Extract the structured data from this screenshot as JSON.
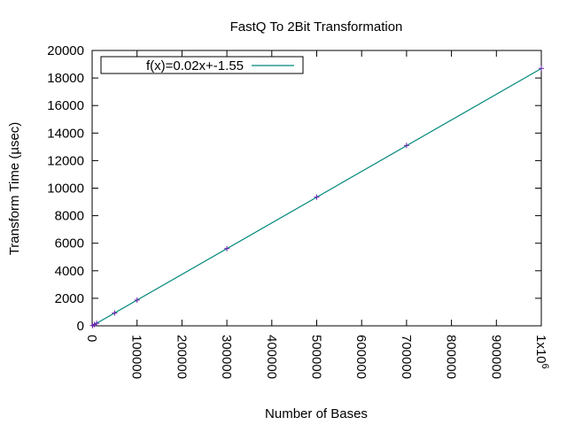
{
  "chart_data": {
    "type": "line",
    "title": "FastQ To 2Bit Transformation",
    "xlabel": "Number of Bases",
    "ylabel": "Transform Time (µsec)",
    "xlim": [
      0,
      1000000
    ],
    "ylim": [
      0,
      20000
    ],
    "x_ticks": [
      0,
      100000,
      200000,
      300000,
      400000,
      500000,
      600000,
      700000,
      800000,
      900000,
      1000000
    ],
    "x_tick_labels": [
      "0",
      "100000",
      "200000",
      "300000",
      "400000",
      "500000",
      "600000",
      "700000",
      "800000",
      "900000",
      "1x10"
    ],
    "x_last_tick_exponent": "6",
    "y_ticks": [
      0,
      2000,
      4000,
      6000,
      8000,
      10000,
      12000,
      14000,
      16000,
      18000,
      20000
    ],
    "y_tick_labels": [
      "0",
      "2000",
      "4000",
      "6000",
      "8000",
      "10000",
      "12000",
      "14000",
      "16000",
      "18000",
      "20000"
    ],
    "grid": false,
    "legend_position": "top-left",
    "series": [
      {
        "kind": "points",
        "marker": "+",
        "color": "#6a1fb0",
        "x": [
          1000,
          5000,
          10000,
          50000,
          100000,
          300000,
          500000,
          700000,
          1000000
        ],
        "y": [
          20,
          95,
          185,
          930,
          1870,
          5610,
          9350,
          13100,
          18700
        ]
      },
      {
        "name": "f(x)=0.02x+-1.55",
        "kind": "line",
        "color": "#00877a",
        "x": [
          0,
          1000000
        ],
        "y": [
          -1.55,
          18690
        ]
      }
    ]
  }
}
